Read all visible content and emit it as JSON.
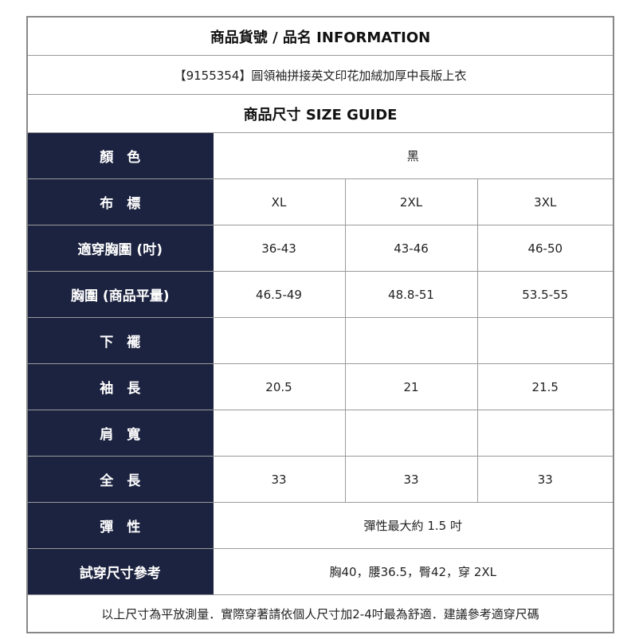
{
  "title": "商品貨號 / 品名 INFORMATION",
  "product": "【9155354】圓領袖拼接英文印花加絨加厚中長版上衣",
  "size_guide_title": "商品尺寸 SIZE GUIDE",
  "colors": {
    "label_bg": "#1c2340"
  },
  "color_row": {
    "label": "顏　色",
    "value": "黑"
  },
  "size_rows": [
    {
      "label": "布　標",
      "values": [
        "XL",
        "2XL",
        "3XL"
      ]
    },
    {
      "label": "適穿胸圍 (吋)",
      "values": [
        "36-43",
        "43-46",
        "46-50"
      ]
    },
    {
      "label": "胸圍 (商品平量)",
      "values": [
        "46.5-49",
        "48.8-51",
        "53.5-55"
      ]
    },
    {
      "label": "下　襬",
      "values": [
        "",
        "",
        ""
      ]
    },
    {
      "label": "袖　長",
      "values": [
        "20.5",
        "21",
        "21.5"
      ]
    },
    {
      "label": "肩　寬",
      "values": [
        "",
        "",
        ""
      ]
    },
    {
      "label": "全　長",
      "values": [
        "33",
        "33",
        "33"
      ]
    }
  ],
  "elasticity": {
    "label": "彈　性",
    "value": "彈性最大約 1.5 吋"
  },
  "fitting": {
    "label": "試穿尺寸參考",
    "value": "胸40，腰36.5，臀42，穿 2XL"
  },
  "footer": "以上尺寸為平放測量．實際穿著請依個人尺寸加2-4吋最為舒適．建議參考適穿尺碼"
}
